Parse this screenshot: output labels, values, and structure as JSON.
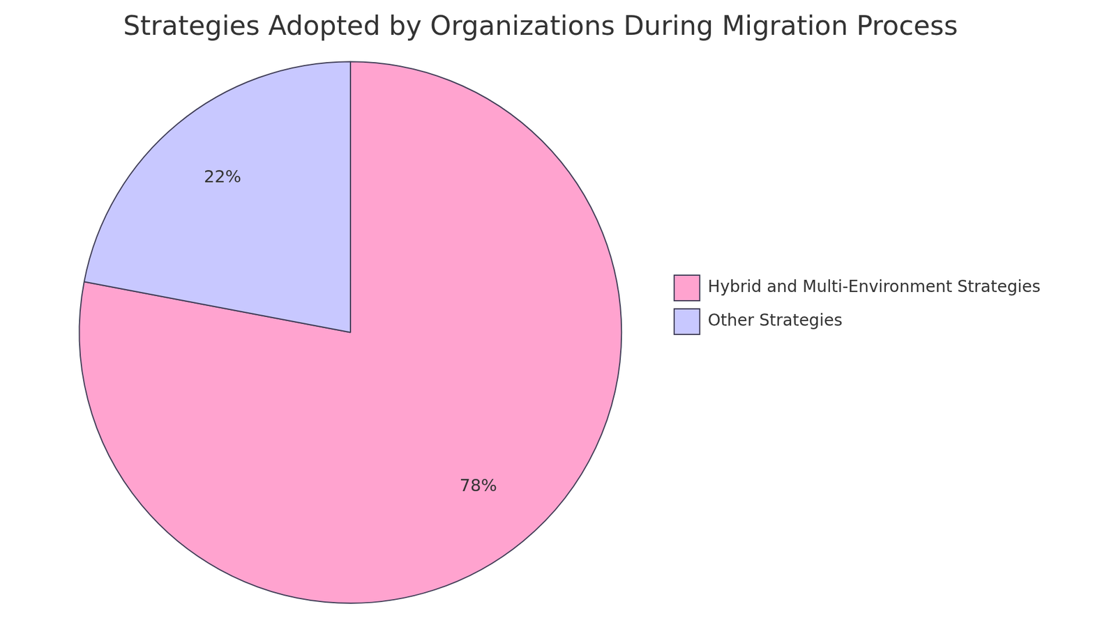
{
  "chart_data": {
    "type": "pie",
    "title": "Strategies Adopted by Organizations During Migration Process",
    "categories": [
      "Hybrid and Multi-Environment Strategies",
      "Other Strategies"
    ],
    "values": [
      78,
      22
    ],
    "value_labels": [
      "78%",
      "22%"
    ],
    "colors": [
      "#ffa3cf",
      "#c8c8ff"
    ],
    "legend": "right",
    "data_labels": true
  }
}
